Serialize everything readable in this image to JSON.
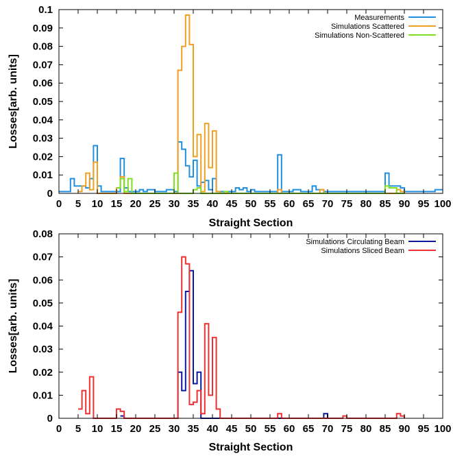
{
  "chart_data": [
    {
      "type": "line",
      "step": true,
      "title": "",
      "xlabel": "Straight Section",
      "ylabel": "Losses[arb. units]",
      "xlim": [
        0,
        100
      ],
      "ylim": [
        0,
        0.1
      ],
      "xticks": [
        0,
        5,
        10,
        15,
        20,
        25,
        30,
        35,
        40,
        45,
        50,
        55,
        60,
        65,
        70,
        75,
        80,
        85,
        90,
        95,
        100
      ],
      "yticks": [
        0,
        0.01,
        0.02,
        0.03,
        0.04,
        0.05,
        0.06,
        0.07,
        0.08,
        0.09,
        0.1
      ],
      "ytick_labels": [
        "0",
        "0.01",
        "0.02",
        "0.03",
        "0.04",
        "0.05",
        "0.06",
        "0.07",
        "0.08",
        "0.09",
        "0.1"
      ],
      "grid": false,
      "legend_position": "top-right",
      "series": [
        {
          "name": "Measurements",
          "color": "#1f8fe0",
          "points": [
            [
              0,
              0.001
            ],
            [
              2,
              0.001
            ],
            [
              3,
              0.008
            ],
            [
              4,
              0.004
            ],
            [
              7,
              0.003
            ],
            [
              8,
              0.008
            ],
            [
              9,
              0.026
            ],
            [
              10,
              0.004
            ],
            [
              11,
              0.001
            ],
            [
              16,
              0.019
            ],
            [
              17,
              0.003
            ],
            [
              18,
              0.001
            ],
            [
              21,
              0.002
            ],
            [
              22,
              0.001
            ],
            [
              23,
              0.002
            ],
            [
              25,
              0.001
            ],
            [
              28,
              0.002
            ],
            [
              30,
              0.001
            ],
            [
              31,
              0.028
            ],
            [
              32,
              0.024
            ],
            [
              33,
              0.015
            ],
            [
              34,
              0.009
            ],
            [
              35,
              0.018
            ],
            [
              36,
              0.004
            ],
            [
              37,
              0.006
            ],
            [
              38,
              0.007
            ],
            [
              39,
              0.002
            ],
            [
              40,
              0.008
            ],
            [
              41,
              0.001
            ],
            [
              46,
              0.003
            ],
            [
              47,
              0.002
            ],
            [
              48,
              0.003
            ],
            [
              49,
              0.001
            ],
            [
              50,
              0.002
            ],
            [
              51,
              0.001
            ],
            [
              57,
              0.021
            ],
            [
              58,
              0.001
            ],
            [
              61,
              0.002
            ],
            [
              63,
              0.001
            ],
            [
              66,
              0.004
            ],
            [
              67,
              0.002
            ],
            [
              69,
              0.001
            ],
            [
              72,
              0.001
            ],
            [
              76,
              0.001
            ],
            [
              85,
              0.011
            ],
            [
              86,
              0.004
            ],
            [
              89,
              0.003
            ],
            [
              90,
              0.001
            ],
            [
              98,
              0.002
            ],
            [
              100,
              0.002
            ]
          ]
        },
        {
          "name": "Simulations Scattered",
          "color": "#f0a020",
          "points": [
            [
              5,
              0.001
            ],
            [
              6,
              0.004
            ],
            [
              7,
              0.011
            ],
            [
              8,
              0.002
            ],
            [
              9,
              0.017
            ],
            [
              10,
              0
            ],
            [
              15,
              0.003
            ],
            [
              16,
              0.009
            ],
            [
              17,
              0
            ],
            [
              31,
              0.067
            ],
            [
              32,
              0.08
            ],
            [
              33,
              0.097
            ],
            [
              34,
              0.081
            ],
            [
              35,
              0.02
            ],
            [
              36,
              0.032
            ],
            [
              37,
              0.001
            ],
            [
              38,
              0.038
            ],
            [
              39,
              0.014
            ],
            [
              40,
              0.034
            ],
            [
              41,
              0.001
            ],
            [
              42,
              0
            ],
            [
              57,
              0.002
            ],
            [
              58,
              0
            ],
            [
              68,
              0.002
            ],
            [
              69,
              0
            ],
            [
              88,
              0.002
            ],
            [
              89,
              0.001
            ],
            [
              90,
              0
            ]
          ]
        },
        {
          "name": "Simulations Non-Scattered",
          "color": "#7fe020",
          "points": [
            [
              15,
              0.003
            ],
            [
              16,
              0.008
            ],
            [
              17,
              0.001
            ],
            [
              18,
              0.008
            ],
            [
              19,
              0
            ],
            [
              30,
              0.011
            ],
            [
              31,
              0
            ],
            [
              35,
              0.002
            ],
            [
              36,
              0.003
            ],
            [
              37,
              0
            ],
            [
              43,
              0.001
            ],
            [
              44,
              0
            ],
            [
              85,
              0.004
            ],
            [
              86,
              0.003
            ],
            [
              88,
              0
            ],
            [
              90,
              0
            ]
          ]
        }
      ]
    },
    {
      "type": "line",
      "step": true,
      "title": "",
      "xlabel": "Straight Section",
      "ylabel": "Losses[arb. units]",
      "xlim": [
        0,
        100
      ],
      "ylim": [
        0,
        0.08
      ],
      "xticks": [
        0,
        5,
        10,
        15,
        20,
        25,
        30,
        35,
        40,
        45,
        50,
        55,
        60,
        65,
        70,
        75,
        80,
        85,
        90,
        95,
        100
      ],
      "yticks": [
        0,
        0.01,
        0.02,
        0.03,
        0.04,
        0.05,
        0.06,
        0.07,
        0.08
      ],
      "ytick_labels": [
        "0",
        "0.01",
        "0.02",
        "0.03",
        "0.04",
        "0.05",
        "0.06",
        "0.07",
        "0.08"
      ],
      "grid": false,
      "legend_position": "top-right",
      "series": [
        {
          "name": "Simulations Circulating Beam",
          "color": "#0a1aa0",
          "points": [
            [
              16,
              0.001
            ],
            [
              17,
              0
            ],
            [
              31,
              0.02
            ],
            [
              32,
              0.012
            ],
            [
              33,
              0.055
            ],
            [
              34,
              0.064
            ],
            [
              35,
              0.015
            ],
            [
              36,
              0.02
            ],
            [
              37,
              0
            ],
            [
              69,
              0.002
            ],
            [
              70,
              0
            ]
          ]
        },
        {
          "name": "Simulations Sliced Beam",
          "color": "#ee3030",
          "points": [
            [
              5,
              0.004
            ],
            [
              6,
              0.012
            ],
            [
              7,
              0.002
            ],
            [
              8,
              0.018
            ],
            [
              9,
              0
            ],
            [
              15,
              0.004
            ],
            [
              16,
              0.003
            ],
            [
              17,
              0
            ],
            [
              31,
              0.046
            ],
            [
              32,
              0.07
            ],
            [
              33,
              0.067
            ],
            [
              34,
              0.006
            ],
            [
              35,
              0.007
            ],
            [
              36,
              0.012
            ],
            [
              37,
              0.002
            ],
            [
              38,
              0.041
            ],
            [
              39,
              0.01
            ],
            [
              40,
              0.035
            ],
            [
              41,
              0.004
            ],
            [
              42,
              0
            ],
            [
              57,
              0.002
            ],
            [
              58,
              0
            ],
            [
              74,
              0.001
            ],
            [
              75,
              0
            ],
            [
              88,
              0.002
            ],
            [
              89,
              0.001
            ],
            [
              90,
              0
            ]
          ]
        }
      ]
    }
  ]
}
